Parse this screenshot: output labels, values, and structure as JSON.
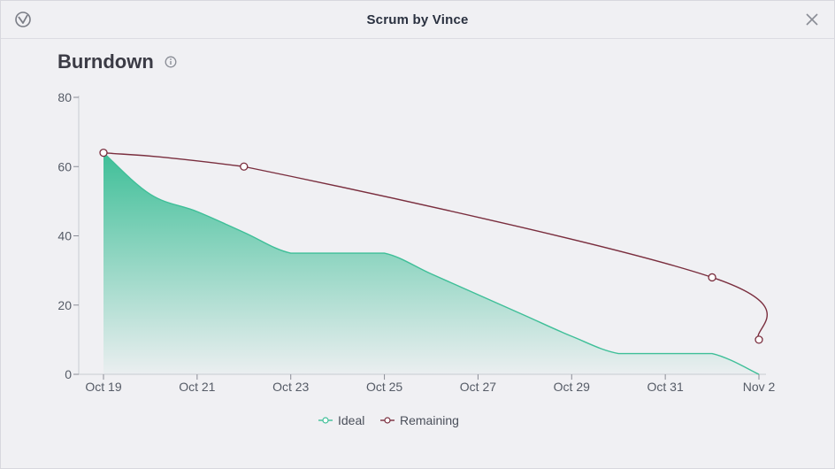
{
  "window": {
    "title": "Scrum by Vince"
  },
  "panel": {
    "title": "Burndown"
  },
  "colors": {
    "ideal": "#3fbf98",
    "remaining": "#7a2e3e"
  },
  "chart_data": {
    "type": "line",
    "title": "",
    "xlabel": "",
    "ylabel": "",
    "ylim": [
      0,
      80
    ],
    "yticks": [
      0,
      20,
      40,
      60,
      80
    ],
    "xlim": [
      "Oct 19",
      "Nov 2"
    ],
    "xticks": [
      "Oct 19",
      "Oct 21",
      "Oct 23",
      "Oct 25",
      "Oct 27",
      "Oct 29",
      "Oct 31",
      "Nov 2"
    ],
    "legend": "bottom-center",
    "series": [
      {
        "name": "Ideal",
        "style": "area",
        "points": [
          [
            "Oct 19",
            64
          ],
          [
            "Oct 20",
            52
          ],
          [
            "Oct 21",
            47
          ],
          [
            "Oct 22",
            41
          ],
          [
            "Oct 23",
            35
          ],
          [
            "Oct 24",
            35
          ],
          [
            "Oct 25",
            35
          ],
          [
            "Oct 26",
            29
          ],
          [
            "Oct 27",
            23
          ],
          [
            "Oct 28",
            17
          ],
          [
            "Oct 29",
            11
          ],
          [
            "Oct 30",
            6
          ],
          [
            "Oct 31",
            6
          ],
          [
            "Nov 1",
            6
          ],
          [
            "Nov 2",
            0
          ]
        ]
      },
      {
        "name": "Remaining",
        "style": "line",
        "points": [
          [
            "Oct 19",
            64
          ],
          [
            "Oct 22",
            60
          ],
          [
            "Nov 1",
            28
          ],
          [
            "Nov 2",
            10
          ]
        ]
      }
    ]
  }
}
